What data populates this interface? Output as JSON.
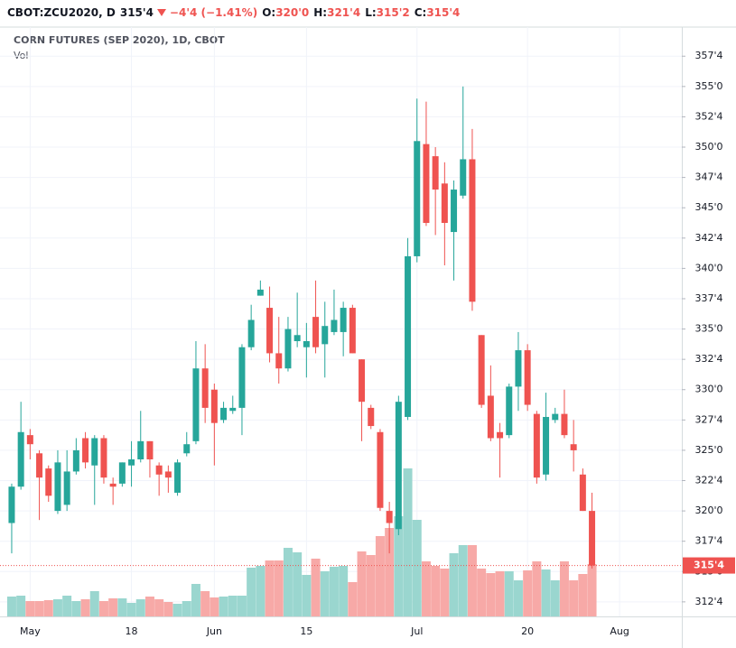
{
  "header": {
    "symbol": "CBOT:ZCU2020, D",
    "last": "315'4",
    "change": "−4'4 (−1.41%)",
    "ohlc": [
      {
        "label": "O:",
        "value": "320'0"
      },
      {
        "label": "H:",
        "value": "321'4"
      },
      {
        "label": "L:",
        "value": "315'2"
      },
      {
        "label": "C:",
        "value": "315'4"
      }
    ]
  },
  "chart_data": {
    "type": "candlestick",
    "title": "CORN FUTURES (SEP 2020), 1D, CBOT",
    "volume_label": "Vol",
    "up_color": "#26a69a",
    "down_color": "#ef5350",
    "volume_up_color": "#9ad6cf",
    "volume_down_color": "#f7a9a7",
    "open": [
      319,
      322,
      326.25,
      324.75,
      323.5,
      320,
      320.5,
      323.25,
      326,
      323.75,
      326,
      322.25,
      322.25,
      323.75,
      324.25,
      325.75,
      323.75,
      323.25,
      321.5,
      324.75,
      325.75,
      331.75,
      330,
      327.5,
      328.25,
      328.5,
      333.5,
      337.75,
      336.75,
      333,
      331.75,
      334,
      333.5,
      336,
      333.75,
      334.75,
      334.75,
      336.75,
      332.5,
      328.5,
      326.5,
      320,
      318.5,
      327.75,
      341,
      350.25,
      349.25,
      347,
      343,
      346,
      349,
      334.5,
      329.5,
      326.5,
      326.25,
      330.25,
      333.25,
      328,
      323,
      327.5,
      328,
      325.5,
      323,
      320
    ],
    "high": [
      322.25,
      329,
      326.75,
      325,
      323.75,
      325,
      325,
      326,
      326.5,
      326.25,
      326.25,
      322.75,
      324,
      325.75,
      328.25,
      325.75,
      324,
      323.75,
      324.25,
      326.5,
      334,
      333.75,
      330.5,
      329,
      329.5,
      333.75,
      337,
      339,
      338.5,
      336,
      336,
      338,
      335.5,
      339,
      337.25,
      338.25,
      337.25,
      337,
      332.5,
      328.75,
      326.75,
      320.75,
      329.5,
      342.5,
      354,
      353.75,
      350,
      348.75,
      347.25,
      355,
      351.5,
      334.5,
      332,
      327.25,
      330.5,
      334.75,
      333.75,
      328.25,
      329.75,
      328.5,
      330,
      327.5,
      323.5,
      321.5
    ],
    "low": [
      316.5,
      321.75,
      324.25,
      319.25,
      320.75,
      319.75,
      320,
      323,
      323.5,
      320.5,
      322.25,
      320.5,
      322,
      322,
      324,
      322.75,
      321.25,
      321.5,
      321.25,
      324.5,
      325.5,
      327.25,
      323.75,
      327.25,
      328,
      326.25,
      333.25,
      337.75,
      332.25,
      330.5,
      331.5,
      333.5,
      331,
      333,
      331,
      334.5,
      332.75,
      333,
      325.75,
      326.75,
      320,
      316.5,
      318,
      327.5,
      340.5,
      343.5,
      342.75,
      340.25,
      339,
      345.75,
      336.5,
      328.5,
      325.75,
      322.75,
      326,
      328.25,
      328.25,
      322.25,
      322.5,
      327.25,
      326,
      323.25,
      320,
      315.25
    ],
    "close": [
      322,
      326.5,
      325.5,
      322.75,
      321.25,
      324,
      323.25,
      325,
      324,
      326,
      322.75,
      322,
      324,
      324.25,
      325.75,
      324.25,
      323,
      322.75,
      324,
      325.5,
      331.75,
      328.5,
      327.25,
      328.5,
      328.5,
      333.5,
      335.75,
      338.25,
      333,
      331.75,
      335,
      334.5,
      334,
      333.5,
      335.25,
      335.75,
      336.75,
      333,
      329,
      327,
      320.25,
      319,
      329,
      341,
      350.5,
      343.75,
      346.5,
      343.75,
      346.5,
      349,
      337.25,
      328.75,
      326,
      326,
      330.25,
      333.25,
      328.75,
      322.75,
      327.75,
      328,
      326.25,
      325,
      320,
      315.5
    ],
    "volume": [
      22,
      23,
      17,
      17,
      18,
      19,
      23,
      17,
      19,
      28,
      17,
      20,
      20,
      15,
      19,
      22,
      19,
      16,
      14,
      17,
      36,
      28,
      21,
      22,
      23,
      23,
      54,
      56,
      62,
      62,
      76,
      71,
      46,
      64,
      50,
      55,
      56,
      38,
      72,
      68,
      89,
      98,
      111,
      164,
      107,
      61,
      56,
      53,
      70,
      79,
      79,
      53,
      48,
      50,
      50,
      40,
      51,
      61,
      52,
      40,
      61,
      40,
      47,
      58
    ],
    "ylim": [
      311.3,
      359.9
    ],
    "yticks": [
      {
        "value": 312.5,
        "label": "312'4"
      },
      {
        "value": 315,
        "label": "315'0"
      },
      {
        "value": 317.5,
        "label": "317'4"
      },
      {
        "value": 320,
        "label": "320'0"
      },
      {
        "value": 322.5,
        "label": "322'4"
      },
      {
        "value": 325,
        "label": "325'0"
      },
      {
        "value": 327.5,
        "label": "327'4"
      },
      {
        "value": 330,
        "label": "330'0"
      },
      {
        "value": 332.5,
        "label": "332'4"
      },
      {
        "value": 335,
        "label": "335'0"
      },
      {
        "value": 337.5,
        "label": "337'4"
      },
      {
        "value": 340,
        "label": "340'0"
      },
      {
        "value": 342.5,
        "label": "342'4"
      },
      {
        "value": 345,
        "label": "345'0"
      },
      {
        "value": 347.5,
        "label": "347'4"
      },
      {
        "value": 350,
        "label": "350'0"
      },
      {
        "value": 352.5,
        "label": "352'4"
      },
      {
        "value": 355,
        "label": "355'0"
      },
      {
        "value": 357.5,
        "label": "357'4"
      }
    ],
    "xlim": [
      -1.27,
      72.75
    ],
    "xticks": [
      {
        "value": 2,
        "label": "May"
      },
      {
        "value": 13,
        "label": "18"
      },
      {
        "value": 22,
        "label": "Jun"
      },
      {
        "value": 32,
        "label": "15"
      },
      {
        "value": 44,
        "label": "Jul"
      },
      {
        "value": 56,
        "label": "20"
      },
      {
        "value": 66,
        "label": "Aug"
      }
    ],
    "grid": true
  }
}
